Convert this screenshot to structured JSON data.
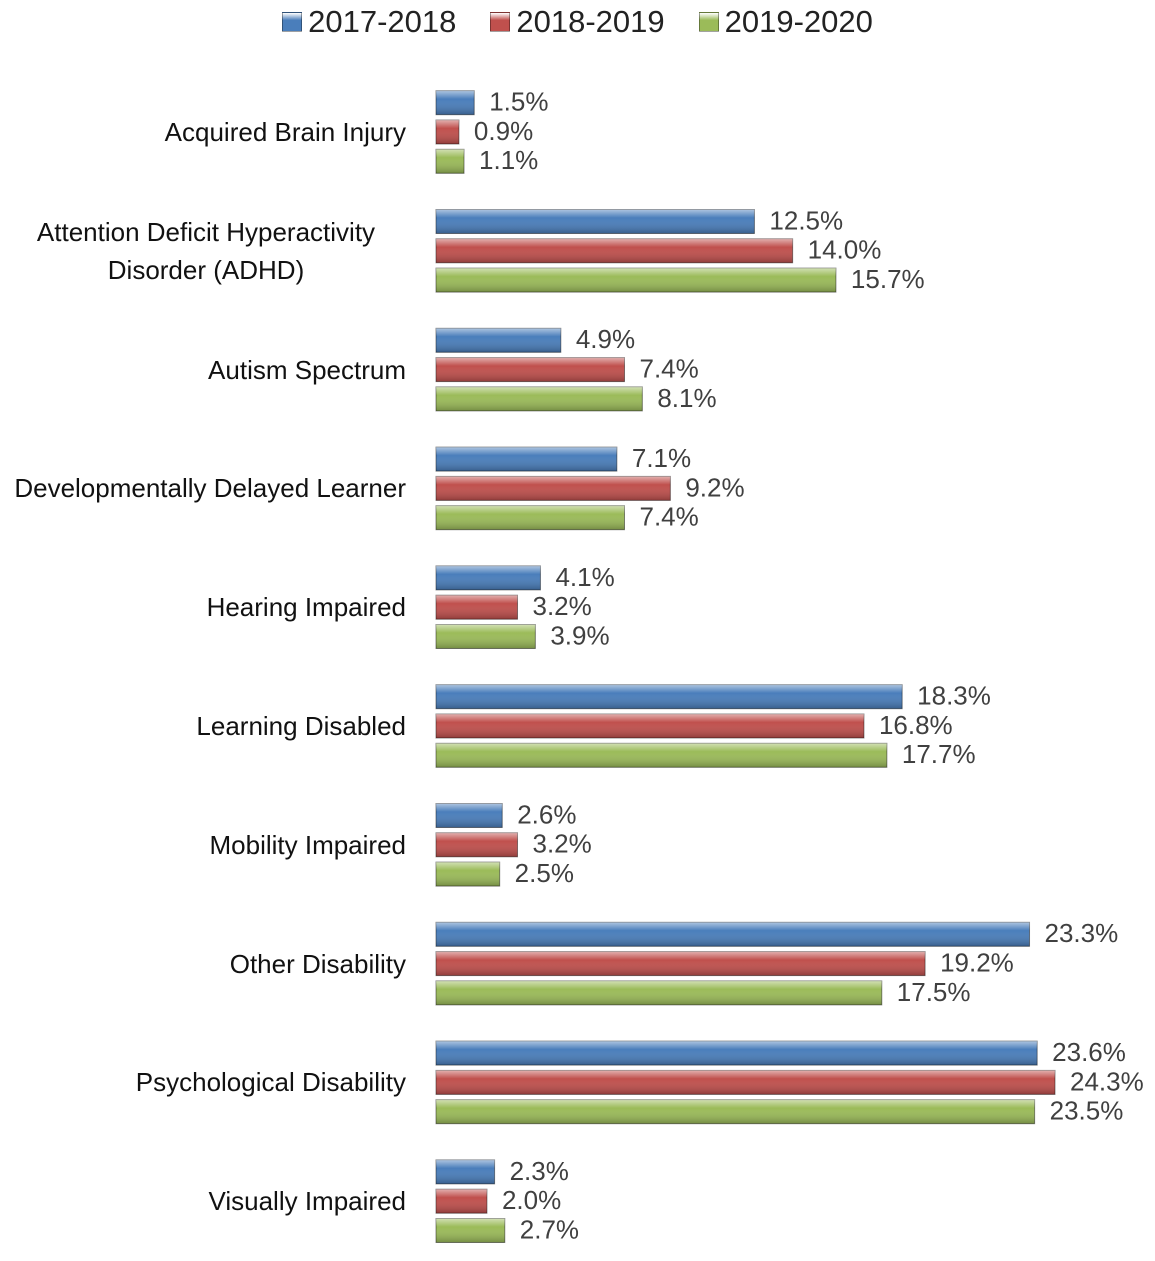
{
  "chart_data": {
    "type": "bar",
    "orientation": "horizontal",
    "categories": [
      "Acquired Brain Injury",
      "Attention Deficit Hyperactivity Disorder (ADHD)",
      "Autism Spectrum",
      "Developmentally Delayed Learner",
      "Hearing Impaired",
      "Learning Disabled",
      "Mobility Impaired",
      "Other Disability",
      "Psychological Disability",
      "Visually Impaired"
    ],
    "series": [
      {
        "name": "2017-2018",
        "color": "#4a7ebb",
        "values": [
          1.5,
          12.5,
          4.9,
          7.1,
          4.1,
          18.3,
          2.6,
          23.3,
          23.6,
          2.3
        ],
        "value_labels": [
          "1.5%",
          "12.5%",
          "4.9%",
          "7.1%",
          "4.1%",
          "18.3%",
          "2.6%",
          "23.3%",
          "23.6%",
          "2.3%"
        ]
      },
      {
        "name": "2018-2019",
        "color": "#c0504d",
        "values": [
          0.9,
          14.0,
          7.4,
          9.2,
          3.2,
          16.8,
          3.2,
          19.2,
          24.3,
          2.0
        ],
        "value_labels": [
          "0.9%",
          "14.0%",
          "7.4%",
          "9.2%",
          "3.2%",
          "16.8%",
          "3.2%",
          "19.2%",
          "24.3%",
          "2.0%"
        ]
      },
      {
        "name": "2019-2020",
        "color": "#9bbb59",
        "values": [
          1.1,
          15.7,
          8.1,
          7.4,
          3.9,
          17.7,
          2.5,
          17.5,
          23.5,
          2.7
        ],
        "value_labels": [
          "1.1%",
          "15.7%",
          "8.1%",
          "7.4%",
          "3.9%",
          "17.7%",
          "2.5%",
          "17.5%",
          "23.5%",
          "2.7%"
        ]
      }
    ],
    "legend": "top"
  }
}
